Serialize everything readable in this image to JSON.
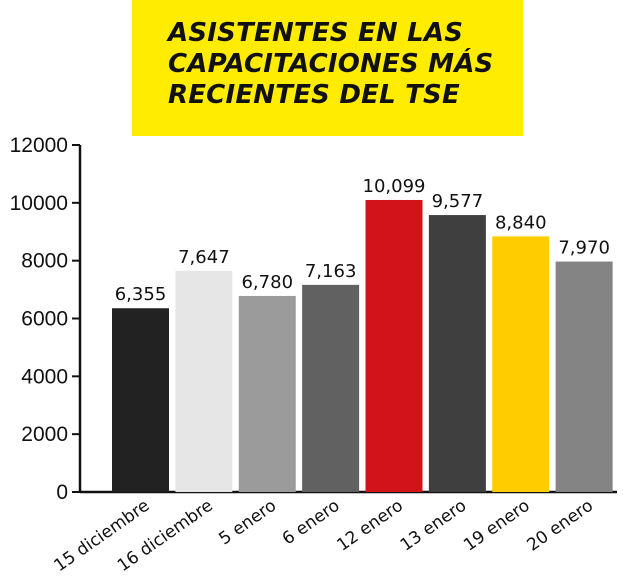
{
  "chart_data": {
    "type": "bar",
    "title": "ASISTENTES EN LAS CAPACITACIONES MÁS RECIENTES DEL TSE",
    "categories": [
      "15 diciembre",
      "16 diciembre",
      "5 enero",
      "6 enero",
      "12 enero",
      "13 enero",
      "19 enero",
      "20 enero"
    ],
    "values": [
      6355,
      7647,
      6780,
      7163,
      10099,
      9577,
      8840,
      7970
    ],
    "value_labels": [
      "6,355",
      "7,647",
      "6,780",
      "7,163",
      "10,099",
      "9,577",
      "8,840",
      "7,970"
    ],
    "bar_colors": [
      "#222222",
      "#e6e6e6",
      "#9b9b9b",
      "#616161",
      "#d0141a",
      "#3f3f3f",
      "#ffcc00",
      "#848484"
    ],
    "ylim": [
      0,
      12000
    ],
    "yticks": [
      0,
      2000,
      4000,
      6000,
      8000,
      10000,
      12000
    ],
    "ytick_labels": [
      "0",
      "2000",
      "4000",
      "6000",
      "8000",
      "10000",
      "12000"
    ],
    "xlabel": "",
    "ylabel": "",
    "grid": false,
    "title_background": "#ffec00"
  }
}
